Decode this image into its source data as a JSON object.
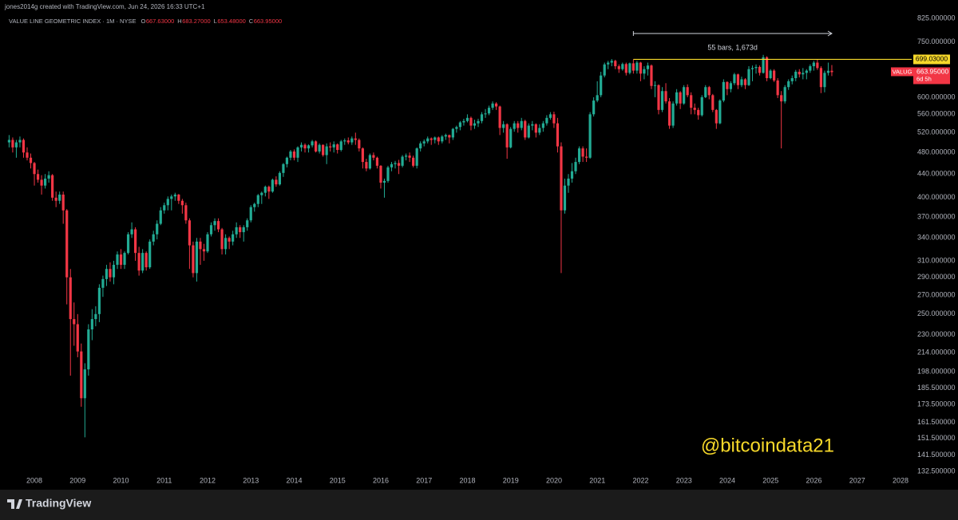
{
  "chart_data": {
    "type": "candlestick",
    "credit": "jones2014g created with TradingView.com, Jun 24, 2026 16:33 UTC+1",
    "legend": {
      "name": "VALUE LINE GEOMETRIC INDEX · 1M · NYSE",
      "fields": [
        "O",
        "H",
        "L",
        "C"
      ],
      "value_labels": [
        "667.63000",
        "683.27000",
        "653.48000",
        "663.95000"
      ]
    },
    "up_color": "#22ab94",
    "down_color": "#f23645",
    "log_scale": true,
    "ylim": [
      132.5,
      825
    ],
    "yticks": [
      {
        "value": 825,
        "label": "825.000000"
      },
      {
        "value": 750,
        "label": "750.000000"
      },
      {
        "value": 600,
        "label": "600.000000"
      },
      {
        "value": 560,
        "label": "560.000000"
      },
      {
        "value": 520,
        "label": "520.000000"
      },
      {
        "value": 480,
        "label": "480.000000"
      },
      {
        "value": 440,
        "label": "440.000000"
      },
      {
        "value": 400,
        "label": "400.000000"
      },
      {
        "value": 370,
        "label": "370.000000"
      },
      {
        "value": 340,
        "label": "340.000000"
      },
      {
        "value": 310,
        "label": "310.000000"
      },
      {
        "value": 290,
        "label": "290.000000"
      },
      {
        "value": 270,
        "label": "270.000000"
      },
      {
        "value": 250,
        "label": "250.000000"
      },
      {
        "value": 230,
        "label": "230.000000"
      },
      {
        "value": 214,
        "label": "214.000000"
      },
      {
        "value": 198,
        "label": "198.000000"
      },
      {
        "value": 185.5,
        "label": "185.500000"
      },
      {
        "value": 173.5,
        "label": "173.500000"
      },
      {
        "value": 161.5,
        "label": "161.500000"
      },
      {
        "value": 151.5,
        "label": "151.500000"
      },
      {
        "value": 141.5,
        "label": "141.500000"
      },
      {
        "value": 132.5,
        "label": "132.500000"
      }
    ],
    "x_labels": [
      "2008",
      "2009",
      "2010",
      "2011",
      "2012",
      "2013",
      "2014",
      "2015",
      "2016",
      "2017",
      "2018",
      "2019",
      "2020",
      "2021",
      "2022",
      "2023",
      "2024",
      "2025",
      "2026",
      "2027",
      "2028"
    ],
    "level": {
      "value": 699.03,
      "label": "699.03000",
      "color": "#f7d92a"
    },
    "measure_label": "55 bars, 1,673d",
    "last_price": {
      "name": "VALUG",
      "value": 663.95,
      "value_label": "663.95000",
      "countdown": "6d 5h"
    },
    "watermark": "@bitcoindata21",
    "candles": [
      [
        500,
        515,
        490,
        505
      ],
      [
        505,
        510,
        480,
        490
      ],
      [
        490,
        505,
        470,
        500
      ],
      [
        500,
        512,
        490,
        505
      ],
      [
        505,
        508,
        470,
        480
      ],
      [
        480,
        490,
        465,
        470
      ],
      [
        470,
        478,
        450,
        460
      ],
      [
        460,
        462,
        420,
        440
      ],
      [
        440,
        448,
        425,
        430
      ],
      [
        430,
        438,
        405,
        420
      ],
      [
        420,
        440,
        415,
        432
      ],
      [
        432,
        445,
        425,
        438
      ],
      [
        438,
        440,
        395,
        400
      ],
      [
        400,
        410,
        385,
        395
      ],
      [
        395,
        410,
        390,
        405
      ],
      [
        405,
        410,
        360,
        380
      ],
      [
        380,
        382,
        260,
        290
      ],
      [
        290,
        300,
        195,
        245
      ],
      [
        245,
        262,
        220,
        240
      ],
      [
        240,
        250,
        210,
        215
      ],
      [
        215,
        222,
        172,
        178
      ],
      [
        178,
        205,
        152,
        200
      ],
      [
        200,
        240,
        195,
        235
      ],
      [
        235,
        255,
        225,
        245
      ],
      [
        245,
        258,
        238,
        250
      ],
      [
        250,
        282,
        242,
        278
      ],
      [
        278,
        292,
        268,
        288
      ],
      [
        288,
        305,
        280,
        300
      ],
      [
        300,
        308,
        285,
        290
      ],
      [
        290,
        310,
        282,
        305
      ],
      [
        305,
        322,
        300,
        318
      ],
      [
        318,
        325,
        300,
        305
      ],
      [
        305,
        322,
        300,
        320
      ],
      [
        320,
        348,
        318,
        345
      ],
      [
        345,
        362,
        340,
        352
      ],
      [
        352,
        355,
        310,
        320
      ],
      [
        320,
        328,
        292,
        298
      ],
      [
        298,
        325,
        295,
        320
      ],
      [
        320,
        322,
        298,
        302
      ],
      [
        302,
        338,
        300,
        335
      ],
      [
        335,
        350,
        330,
        345
      ],
      [
        345,
        365,
        338,
        360
      ],
      [
        360,
        385,
        358,
        380
      ],
      [
        380,
        392,
        375,
        388
      ],
      [
        388,
        402,
        380,
        398
      ],
      [
        398,
        405,
        380,
        402
      ],
      [
        402,
        408,
        395,
        405
      ],
      [
        405,
        406,
        390,
        395
      ],
      [
        395,
        398,
        375,
        388
      ],
      [
        388,
        392,
        360,
        365
      ],
      [
        365,
        368,
        300,
        330
      ],
      [
        330,
        335,
        290,
        295
      ],
      [
        295,
        340,
        285,
        335
      ],
      [
        335,
        340,
        305,
        325
      ],
      [
        325,
        332,
        310,
        322
      ],
      [
        322,
        348,
        320,
        345
      ],
      [
        345,
        362,
        342,
        358
      ],
      [
        358,
        368,
        350,
        364
      ],
      [
        364,
        368,
        348,
        352
      ],
      [
        352,
        354,
        318,
        325
      ],
      [
        325,
        345,
        318,
        340
      ],
      [
        340,
        342,
        325,
        335
      ],
      [
        335,
        350,
        330,
        345
      ],
      [
        345,
        362,
        340,
        355
      ],
      [
        355,
        358,
        340,
        348
      ],
      [
        348,
        358,
        335,
        355
      ],
      [
        355,
        368,
        350,
        365
      ],
      [
        365,
        388,
        362,
        385
      ],
      [
        385,
        392,
        378,
        390
      ],
      [
        390,
        406,
        385,
        404
      ],
      [
        404,
        410,
        390,
        408
      ],
      [
        408,
        420,
        402,
        418
      ],
      [
        418,
        420,
        398,
        410
      ],
      [
        410,
        432,
        408,
        430
      ],
      [
        430,
        436,
        418,
        422
      ],
      [
        422,
        445,
        420,
        442
      ],
      [
        442,
        460,
        435,
        458
      ],
      [
        458,
        472,
        452,
        470
      ],
      [
        470,
        485,
        465,
        482
      ],
      [
        482,
        486,
        465,
        470
      ],
      [
        470,
        492,
        462,
        490
      ],
      [
        490,
        500,
        482,
        495
      ],
      [
        495,
        498,
        480,
        488
      ],
      [
        488,
        496,
        480,
        494
      ],
      [
        494,
        505,
        490,
        502
      ],
      [
        502,
        504,
        480,
        482
      ],
      [
        482,
        498,
        478,
        495
      ],
      [
        495,
        496,
        472,
        475
      ],
      [
        475,
        498,
        458,
        492
      ],
      [
        492,
        500,
        482,
        490
      ],
      [
        490,
        502,
        480,
        496
      ],
      [
        496,
        498,
        478,
        485
      ],
      [
        485,
        505,
        482,
        502
      ],
      [
        502,
        508,
        495,
        504
      ],
      [
        504,
        510,
        496,
        500
      ],
      [
        500,
        512,
        495,
        508
      ],
      [
        508,
        520,
        495,
        505
      ],
      [
        505,
        508,
        482,
        488
      ],
      [
        488,
        490,
        450,
        462
      ],
      [
        462,
        468,
        445,
        450
      ],
      [
        450,
        478,
        448,
        475
      ],
      [
        475,
        480,
        465,
        470
      ],
      [
        470,
        472,
        450,
        455
      ],
      [
        455,
        456,
        415,
        425
      ],
      [
        425,
        432,
        400,
        428
      ],
      [
        428,
        455,
        425,
        452
      ],
      [
        452,
        462,
        445,
        458
      ],
      [
        458,
        464,
        450,
        460
      ],
      [
        460,
        466,
        440,
        455
      ],
      [
        455,
        475,
        452,
        472
      ],
      [
        472,
        478,
        465,
        474
      ],
      [
        474,
        480,
        462,
        470
      ],
      [
        470,
        474,
        452,
        455
      ],
      [
        455,
        490,
        450,
        488
      ],
      [
        488,
        502,
        482,
        498
      ],
      [
        498,
        506,
        492,
        502
      ],
      [
        502,
        512,
        498,
        508
      ],
      [
        508,
        510,
        495,
        505
      ],
      [
        505,
        512,
        498,
        510
      ],
      [
        510,
        512,
        495,
        502
      ],
      [
        502,
        515,
        498,
        512
      ],
      [
        512,
        518,
        505,
        515
      ],
      [
        515,
        516,
        498,
        510
      ],
      [
        510,
        530,
        505,
        528
      ],
      [
        528,
        535,
        520,
        532
      ],
      [
        532,
        545,
        525,
        542
      ],
      [
        542,
        550,
        535,
        545
      ],
      [
        545,
        560,
        542,
        552
      ],
      [
        552,
        555,
        525,
        535
      ],
      [
        535,
        548,
        528,
        540
      ],
      [
        540,
        550,
        532,
        545
      ],
      [
        545,
        565,
        540,
        560
      ],
      [
        560,
        572,
        552,
        562
      ],
      [
        562,
        580,
        558,
        575
      ],
      [
        575,
        590,
        570,
        585
      ],
      [
        585,
        588,
        570,
        578
      ],
      [
        578,
        580,
        515,
        530
      ],
      [
        530,
        545,
        520,
        538
      ],
      [
        538,
        540,
        468,
        490
      ],
      [
        490,
        532,
        488,
        528
      ],
      [
        528,
        545,
        522,
        540
      ],
      [
        540,
        545,
        520,
        530
      ],
      [
        530,
        552,
        525,
        545
      ],
      [
        545,
        548,
        505,
        510
      ],
      [
        510,
        540,
        508,
        535
      ],
      [
        535,
        545,
        525,
        538
      ],
      [
        538,
        540,
        510,
        520
      ],
      [
        520,
        538,
        515,
        530
      ],
      [
        530,
        545,
        522,
        540
      ],
      [
        540,
        558,
        535,
        552
      ],
      [
        552,
        565,
        548,
        560
      ],
      [
        560,
        566,
        530,
        540
      ],
      [
        540,
        552,
        480,
        492
      ],
      [
        492,
        500,
        295,
        380
      ],
      [
        380,
        432,
        375,
        420
      ],
      [
        420,
        440,
        408,
        432
      ],
      [
        432,
        460,
        425,
        445
      ],
      [
        445,
        470,
        440,
        462
      ],
      [
        462,
        492,
        458,
        488
      ],
      [
        488,
        492,
        462,
        472
      ],
      [
        472,
        488,
        462,
        470
      ],
      [
        470,
        565,
        468,
        560
      ],
      [
        560,
        600,
        555,
        592
      ],
      [
        592,
        640,
        588,
        605
      ],
      [
        605,
        665,
        600,
        655
      ],
      [
        655,
        690,
        650,
        685
      ],
      [
        685,
        695,
        672,
        690
      ],
      [
        690,
        700,
        680,
        695
      ],
      [
        695,
        698,
        672,
        680
      ],
      [
        680,
        685,
        662,
        672
      ],
      [
        672,
        690,
        668,
        686
      ],
      [
        686,
        690,
        655,
        662
      ],
      [
        662,
        690,
        658,
        688
      ],
      [
        688,
        699.03,
        660,
        668
      ],
      [
        668,
        695,
        660,
        690
      ],
      [
        690,
        692,
        640,
        660
      ],
      [
        660,
        680,
        645,
        672
      ],
      [
        672,
        690,
        655,
        682
      ],
      [
        682,
        685,
        620,
        628
      ],
      [
        628,
        640,
        600,
        630
      ],
      [
        630,
        632,
        560,
        570
      ],
      [
        570,
        625,
        565,
        615
      ],
      [
        615,
        635,
        585,
        590
      ],
      [
        590,
        598,
        528,
        535
      ],
      [
        535,
        590,
        530,
        585
      ],
      [
        585,
        620,
        580,
        612
      ],
      [
        612,
        615,
        572,
        585
      ],
      [
        585,
        630,
        582,
        625
      ],
      [
        625,
        632,
        600,
        605
      ],
      [
        605,
        612,
        560,
        575
      ],
      [
        575,
        585,
        560,
        570
      ],
      [
        570,
        575,
        548,
        558
      ],
      [
        558,
        605,
        555,
        600
      ],
      [
        600,
        630,
        598,
        625
      ],
      [
        625,
        628,
        595,
        605
      ],
      [
        605,
        608,
        565,
        570
      ],
      [
        570,
        572,
        528,
        540
      ],
      [
        540,
        595,
        538,
        592
      ],
      [
        592,
        645,
        588,
        638
      ],
      [
        638,
        640,
        605,
        620
      ],
      [
        620,
        640,
        612,
        635
      ],
      [
        635,
        662,
        630,
        658
      ],
      [
        658,
        660,
        620,
        630
      ],
      [
        630,
        652,
        625,
        645
      ],
      [
        645,
        648,
        620,
        630
      ],
      [
        630,
        680,
        628,
        672
      ],
      [
        672,
        682,
        640,
        675
      ],
      [
        675,
        685,
        660,
        678
      ],
      [
        678,
        682,
        655,
        662
      ],
      [
        662,
        712,
        660,
        705
      ],
      [
        705,
        708,
        640,
        648
      ],
      [
        648,
        672,
        645,
        668
      ],
      [
        668,
        672,
        638,
        642
      ],
      [
        642,
        648,
        598,
        605
      ],
      [
        605,
        615,
        488,
        590
      ],
      [
        590,
        630,
        585,
        625
      ],
      [
        625,
        645,
        618,
        640
      ],
      [
        640,
        655,
        632,
        648
      ],
      [
        648,
        670,
        640,
        665
      ],
      [
        665,
        672,
        650,
        658
      ],
      [
        658,
        675,
        645,
        662
      ],
      [
        662,
        672,
        645,
        668
      ],
      [
        668,
        685,
        662,
        680
      ],
      [
        680,
        695,
        668,
        690
      ],
      [
        690,
        698,
        670,
        675
      ],
      [
        675,
        680,
        610,
        625
      ],
      [
        625,
        668,
        612,
        662
      ],
      [
        662,
        690,
        655,
        667.63
      ],
      [
        667.63,
        683.27,
        653.48,
        663.95
      ]
    ]
  },
  "footer": {
    "brand": "TradingView"
  }
}
